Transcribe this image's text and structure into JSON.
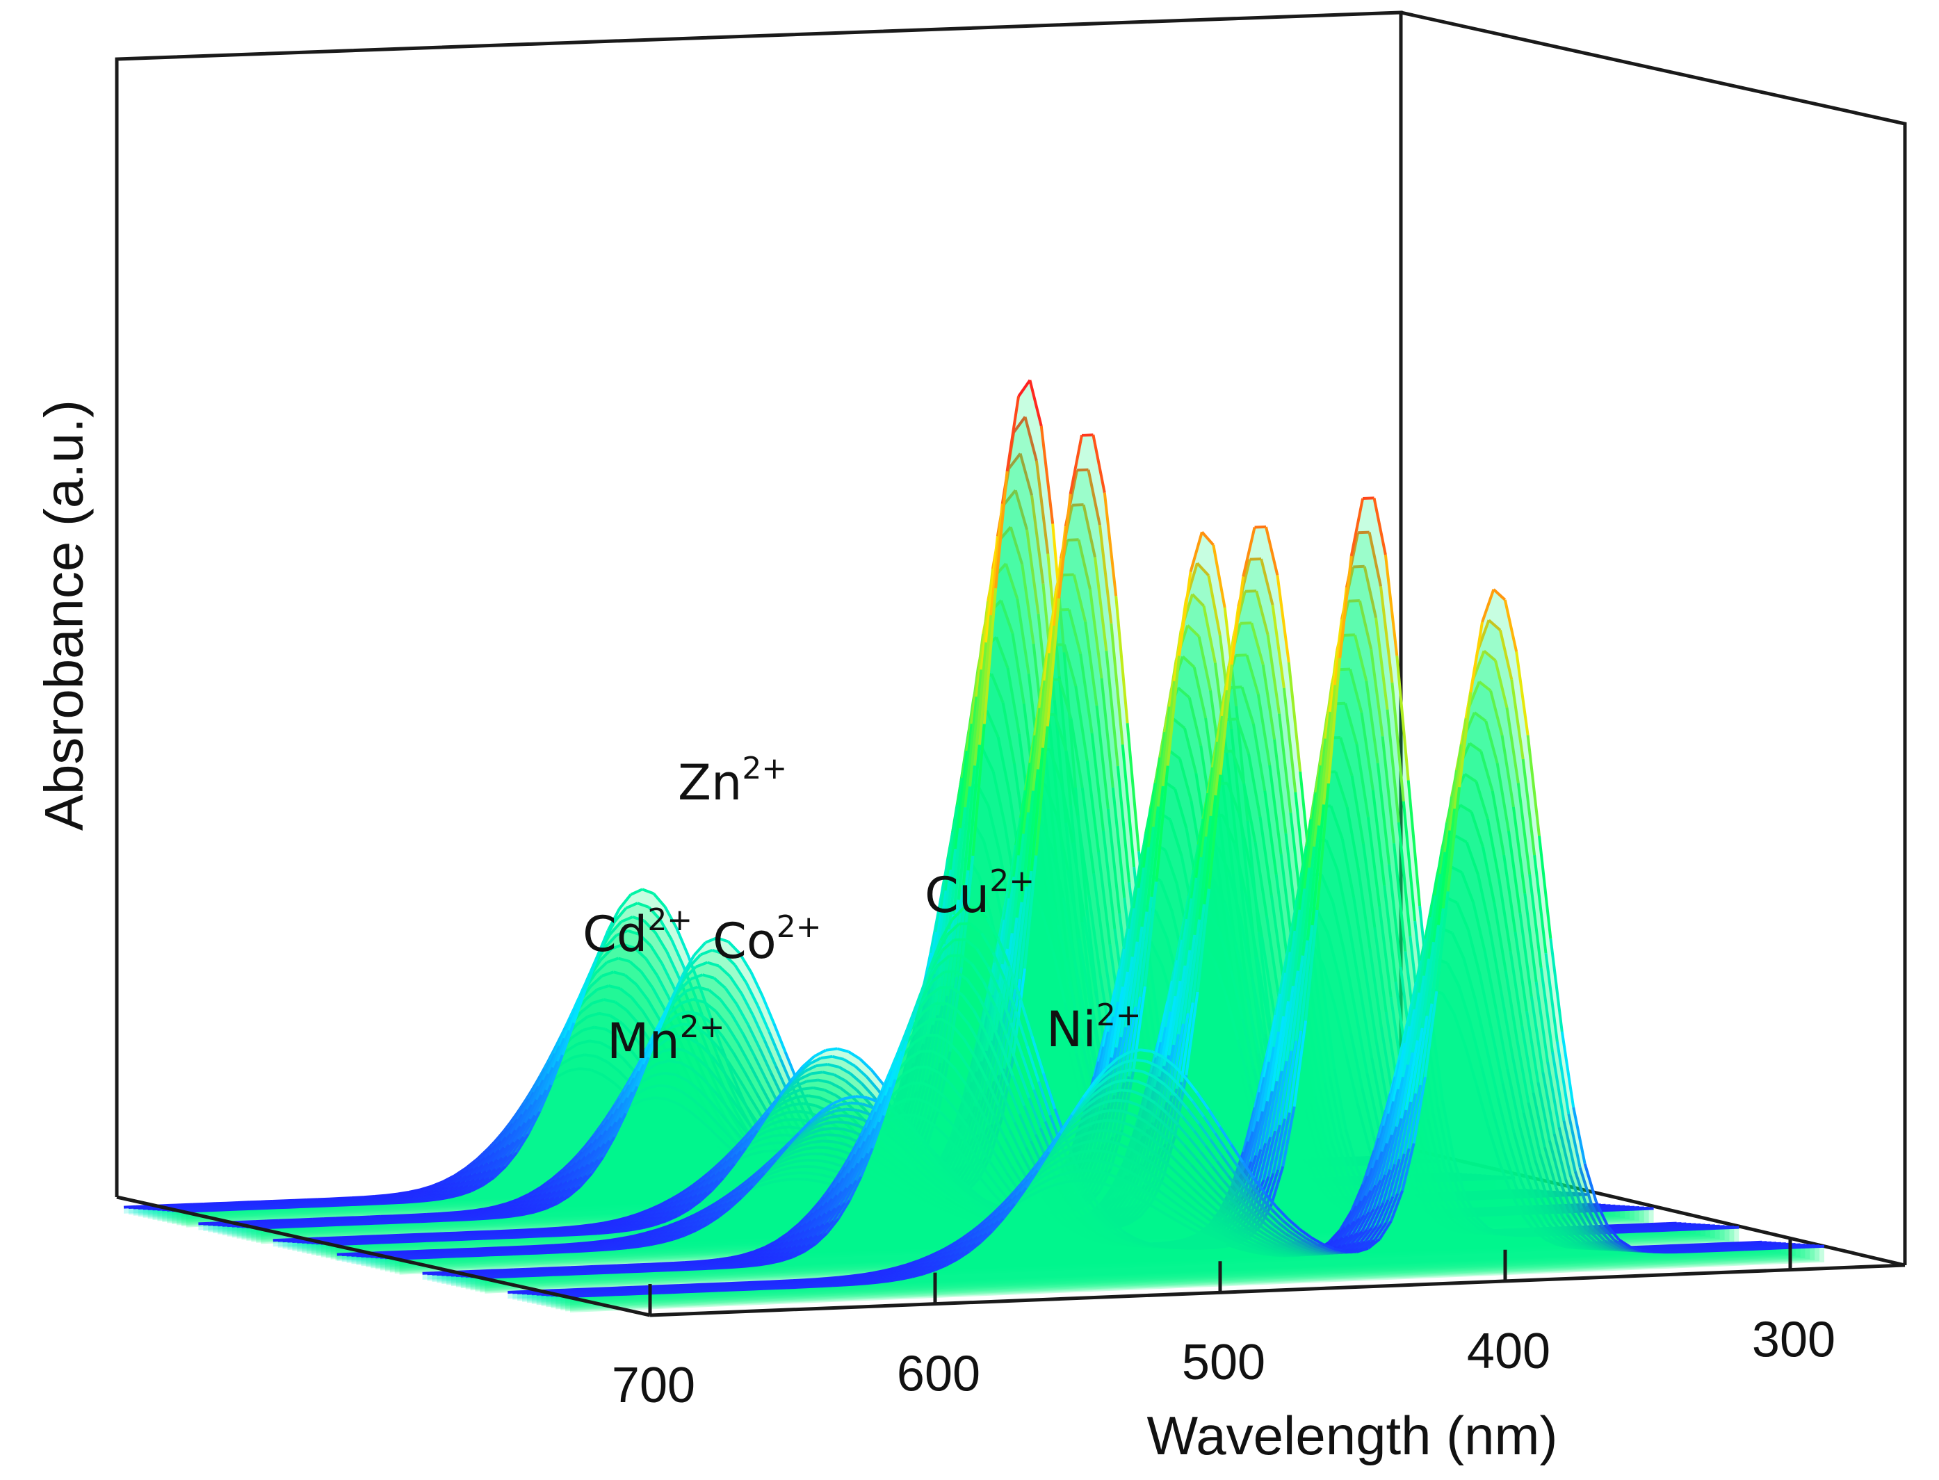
{
  "chart_data": {
    "type": "3d-waterfall",
    "title": "",
    "xlabel": "Wavelength (nm)",
    "ylabel": "Absrobance (a.u.)",
    "x_range": [
      280,
      720
    ],
    "x_ticks": [
      "700",
      "600",
      "500",
      "400",
      "300"
    ],
    "x_tick_values": [
      700,
      600,
      500,
      400,
      300
    ],
    "series": [
      {
        "name": "Zn",
        "charge": "2+",
        "peaks": [
          {
            "nm": 425,
            "abs": 1.0,
            "w": 20
          },
          {
            "nm": 560,
            "abs": 0.38,
            "w": 32
          }
        ]
      },
      {
        "name": "Cd",
        "charge": "2+",
        "peaks": [
          {
            "nm": 430,
            "abs": 0.96,
            "w": 20
          },
          {
            "nm": 560,
            "abs": 0.34,
            "w": 32
          }
        ]
      },
      {
        "name": "Co",
        "charge": "2+",
        "peaks": [
          {
            "nm": 415,
            "abs": 0.85,
            "w": 20
          },
          {
            "nm": 545,
            "abs": 0.22,
            "w": 35
          }
        ]
      },
      {
        "name": "Mn",
        "charge": "2+",
        "peaks": [
          {
            "nm": 418,
            "abs": 0.88,
            "w": 21
          },
          {
            "nm": 560,
            "abs": 0.18,
            "w": 38
          }
        ]
      },
      {
        "name": "Cu",
        "charge": "2+",
        "peaks": [
          {
            "nm": 410,
            "abs": 0.94,
            "w": 20
          },
          {
            "nm": 550,
            "abs": 0.44,
            "w": 32
          }
        ]
      },
      {
        "name": "Ni",
        "charge": "2+",
        "peaks": [
          {
            "nm": 395,
            "abs": 0.84,
            "w": 22
          },
          {
            "nm": 520,
            "abs": 0.28,
            "w": 42
          }
        ]
      }
    ],
    "colormap": [
      "#2020ff",
      "#00e5ff",
      "#00ff66",
      "#ffe600",
      "#ff2020"
    ]
  }
}
